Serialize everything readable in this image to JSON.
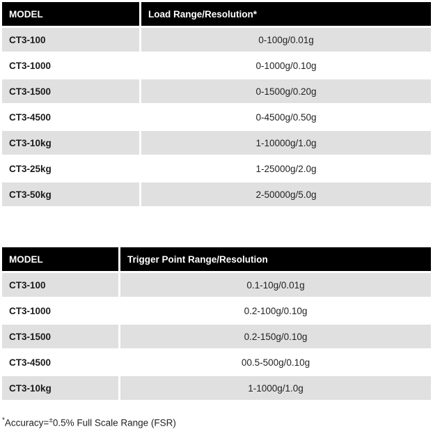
{
  "colors": {
    "header_bg": "#000000",
    "header_text": "#ffffff",
    "row_alt_bg": "#e0e0e0",
    "row_bg": "#ffffff",
    "body_text": "#222222"
  },
  "tables": [
    {
      "name": "load-range",
      "headers": [
        "MODEL",
        "Load Range/Resolution*"
      ],
      "rows": [
        {
          "model": "CT3-100",
          "value": "0-100g/0.01g"
        },
        {
          "model": "CT3-1000",
          "value": "0-1000g/0.10g"
        },
        {
          "model": "CT3-1500",
          "value": "0-1500g/0.20g"
        },
        {
          "model": "CT3-4500",
          "value": "0-4500g/0.50g"
        },
        {
          "model": "CT3-10kg",
          "value": "1-10000g/1.0g"
        },
        {
          "model": "CT3-25kg",
          "value": "1-25000g/2.0g"
        },
        {
          "model": "CT3-50kg",
          "value": "2-50000g/5.0g"
        }
      ]
    },
    {
      "name": "trigger-point",
      "headers": [
        "MODEL",
        "Trigger Point Range/Resolution"
      ],
      "rows": [
        {
          "model": "CT3-100",
          "value": "0.1-10g/0.01g"
        },
        {
          "model": "CT3-1000",
          "value": "0.2-100g/0.10g"
        },
        {
          "model": "CT3-1500",
          "value": "0.2-150g/0.10g"
        },
        {
          "model": "CT3-4500",
          "value": "00.5-500g/0.10g"
        },
        {
          "model": "CT3-10kg",
          "value": "1-1000g/1.0g"
        }
      ]
    }
  ],
  "footnote": {
    "marker": "*",
    "prefix": "Accuracy=",
    "plusminus": "±",
    "text": "0.5% Full Scale Range (FSR)"
  }
}
